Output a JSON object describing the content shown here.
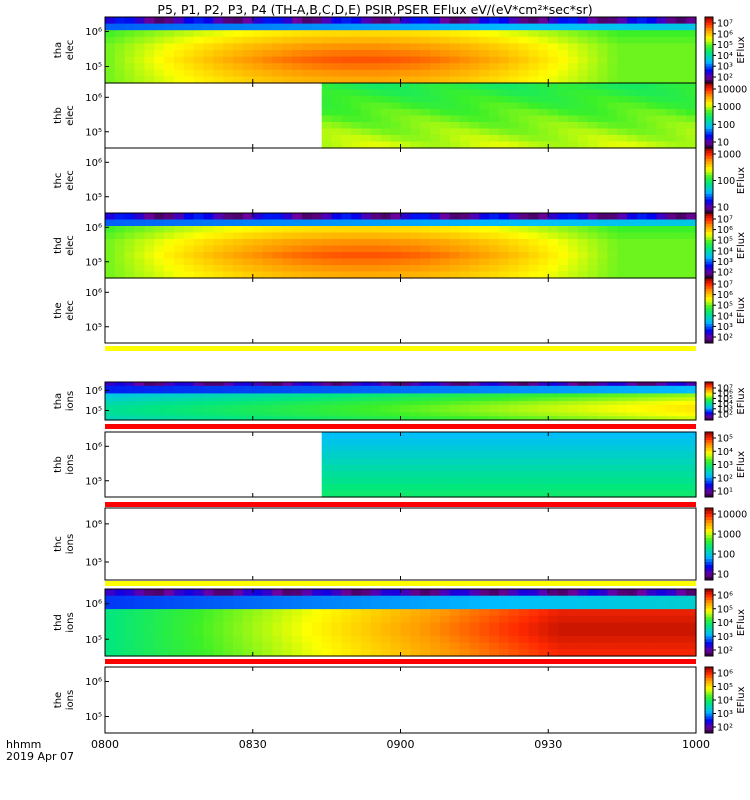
{
  "title": "P5, P1, P2, P3, P4 (TH-A,B,C,D,E) PSIR,PSER EFlux eV/(eV*cm²*sec*sr)",
  "chart_data": {
    "type": "heatmap",
    "x_ticks": [
      "0800",
      "0830",
      "0900",
      "0930",
      "1000"
    ],
    "x_range": [
      "08:00",
      "10:00"
    ],
    "x_axis_label": "hhmm",
    "date_label": "2019 Apr 07",
    "panels": [
      {
        "label": "tha elec",
        "label1": "tha",
        "label2": "elec",
        "y_ticks": [
          "10⁶",
          "10⁵"
        ],
        "cb_ticks": [
          "10⁷",
          "10⁶",
          "10⁵",
          "10⁴",
          "10³",
          "10²"
        ],
        "cb_label": "EFlux",
        "data": "full",
        "style": "elec",
        "data_start": "08:00"
      },
      {
        "label": "thb elec",
        "label1": "thb",
        "label2": "elec",
        "y_ticks": [
          "10⁶",
          "10⁵"
        ],
        "cb_ticks": [
          "10000",
          "1000",
          "100",
          "10"
        ],
        "cb_label": "",
        "data": "partial",
        "style": "thbElec",
        "data_start": "08:45"
      },
      {
        "label": "thc elec",
        "label1": "thc",
        "label2": "elec",
        "y_ticks": [
          "10⁶",
          "10⁵"
        ],
        "cb_ticks": [
          "1000",
          "100",
          "10"
        ],
        "cb_label": "EFlux",
        "data": "none",
        "style": "none"
      },
      {
        "label": "thd elec",
        "label1": "thd",
        "label2": "elec",
        "y_ticks": [
          "10⁶",
          "10⁵"
        ],
        "cb_ticks": [
          "10⁷",
          "10⁶",
          "10⁵",
          "10⁴",
          "10³",
          "10²"
        ],
        "cb_label": "EFlux",
        "data": "full",
        "style": "elec",
        "data_start": "08:00"
      },
      {
        "label": "the elec",
        "label1": "the",
        "label2": "elec",
        "y_ticks": [
          "10⁶",
          "10⁵"
        ],
        "cb_ticks": [
          "10⁷",
          "10⁶",
          "10⁵",
          "10⁴",
          "10³",
          "10²"
        ],
        "cb_label": "EFlux",
        "data": "none",
        "style": "none"
      },
      {
        "label": "tha ions",
        "label1": "tha",
        "label2": "ions",
        "y_ticks": [
          "10⁶",
          "10⁵"
        ],
        "cb_ticks": [
          "10⁷",
          "10⁶",
          "10⁵",
          "10⁴",
          "10³",
          "10²"
        ],
        "cb_label": "EFlux",
        "data": "full",
        "style": "ionsA",
        "data_start": "08:00"
      },
      {
        "label": "thb ions",
        "label1": "thb",
        "label2": "ions",
        "y_ticks": [
          "10⁶",
          "10⁵"
        ],
        "cb_ticks": [
          "10⁵",
          "10⁴",
          "10³",
          "10²",
          "10¹"
        ],
        "cb_label": "EFlux",
        "data": "partial",
        "style": "thbIons",
        "data_start": "08:45"
      },
      {
        "label": "thc ions",
        "label1": "thc",
        "label2": "ions",
        "y_ticks": [
          "10⁶",
          "10⁵"
        ],
        "cb_ticks": [
          "10000",
          "1000",
          "100",
          "10"
        ],
        "cb_label": "",
        "data": "none",
        "style": "none"
      },
      {
        "label": "thd ions",
        "label1": "thd",
        "label2": "ions",
        "y_ticks": [
          "10⁶",
          "10⁵"
        ],
        "cb_ticks": [
          "10⁶",
          "10⁵",
          "10⁴",
          "10³",
          "10²"
        ],
        "cb_label": "EFlux",
        "data": "full",
        "style": "ionsD",
        "data_start": "08:00"
      },
      {
        "label": "the ions",
        "label1": "the",
        "label2": "ions",
        "y_ticks": [
          "10⁶",
          "10⁵"
        ],
        "cb_ticks": [
          "10⁶",
          "10⁵",
          "10⁴",
          "10³",
          "10²"
        ],
        "cb_label": "EFlux",
        "data": "none",
        "style": "none"
      }
    ],
    "bars": [
      {
        "after_panel": "the elec",
        "color": "#ffff00"
      },
      {
        "after_panel": "tha ions",
        "color": "#ff0000"
      },
      {
        "after_panel": "thb ions",
        "color": "#ff0000"
      },
      {
        "after_panel": "thc ions",
        "color": "#ffff00"
      },
      {
        "after_panel": "thd ions",
        "color": "#ff0000"
      }
    ],
    "colors": {
      "bar_yellow": "#ffff00",
      "bar_red": "#ff0000"
    }
  }
}
